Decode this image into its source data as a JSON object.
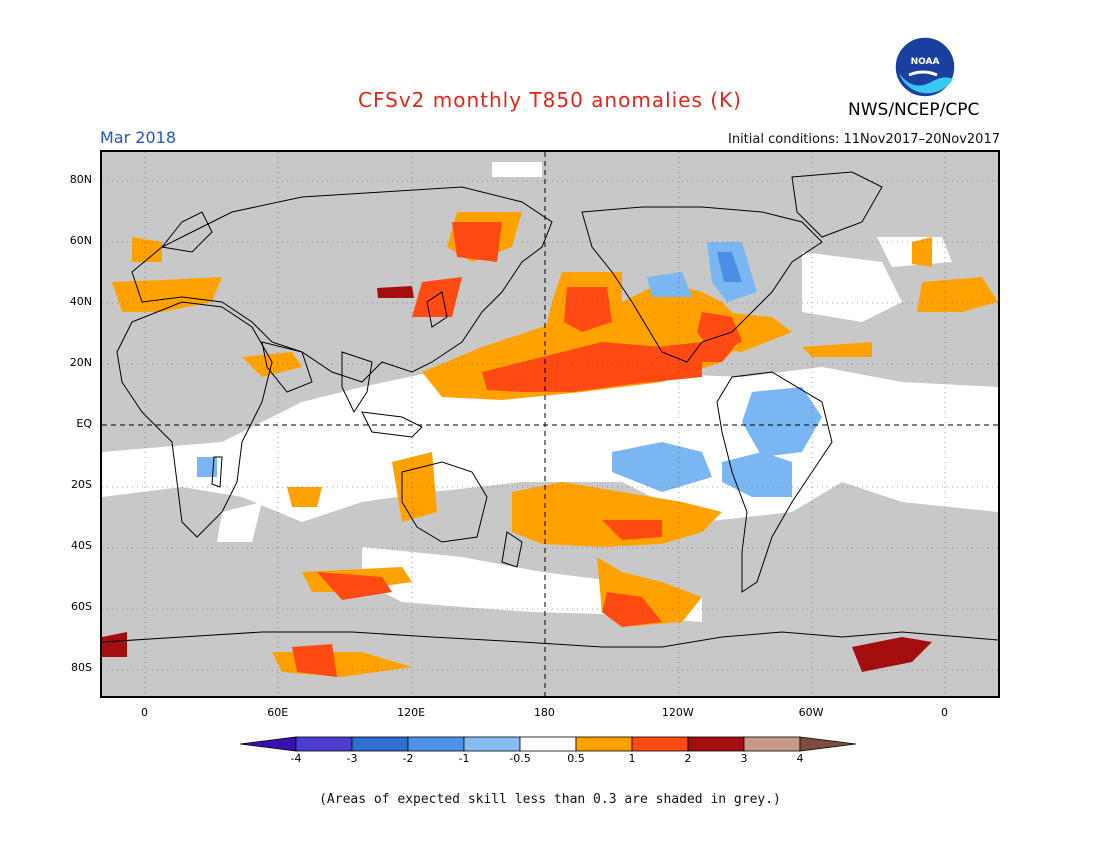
{
  "header": {
    "title": "CFSv2 monthly T850 anomalies (K)",
    "agency": "NWS/NCEP/CPC",
    "logo_text": "NOAA",
    "month": "Mar 2018",
    "initial_conditions": "Initial conditions: 11Nov2017–20Nov2017"
  },
  "axes": {
    "lat_labels": [
      "80N",
      "60N",
      "40N",
      "20N",
      "EQ",
      "20S",
      "40S",
      "60S",
      "80S"
    ],
    "lat_values": [
      80,
      60,
      40,
      20,
      0,
      -20,
      -40,
      -60,
      -80
    ],
    "lon_labels": [
      "0",
      "60E",
      "120E",
      "180",
      "120W",
      "60W",
      "0"
    ],
    "lon_values": [
      0,
      60,
      120,
      180,
      240,
      300,
      360
    ]
  },
  "colorbar": {
    "labels": [
      "-4",
      "-3",
      "-2",
      "-1",
      "-0.5",
      "0.5",
      "1",
      "2",
      "3",
      "4"
    ],
    "colors": [
      "#3a10b0",
      "#4a3fcf",
      "#2f6fd0",
      "#4d92e6",
      "#86bcf2",
      "#ffffff",
      "#ffa200",
      "#ff4a12",
      "#a50e0e",
      "#c79b8a",
      "#7d4e40"
    ]
  },
  "footnote": "(Areas of expected skill less than 0.3 are shaded in grey.)",
  "colors": {
    "skill_mask": "#c8c8c8",
    "neutral": "#ffffff",
    "coast": "#000000"
  }
}
